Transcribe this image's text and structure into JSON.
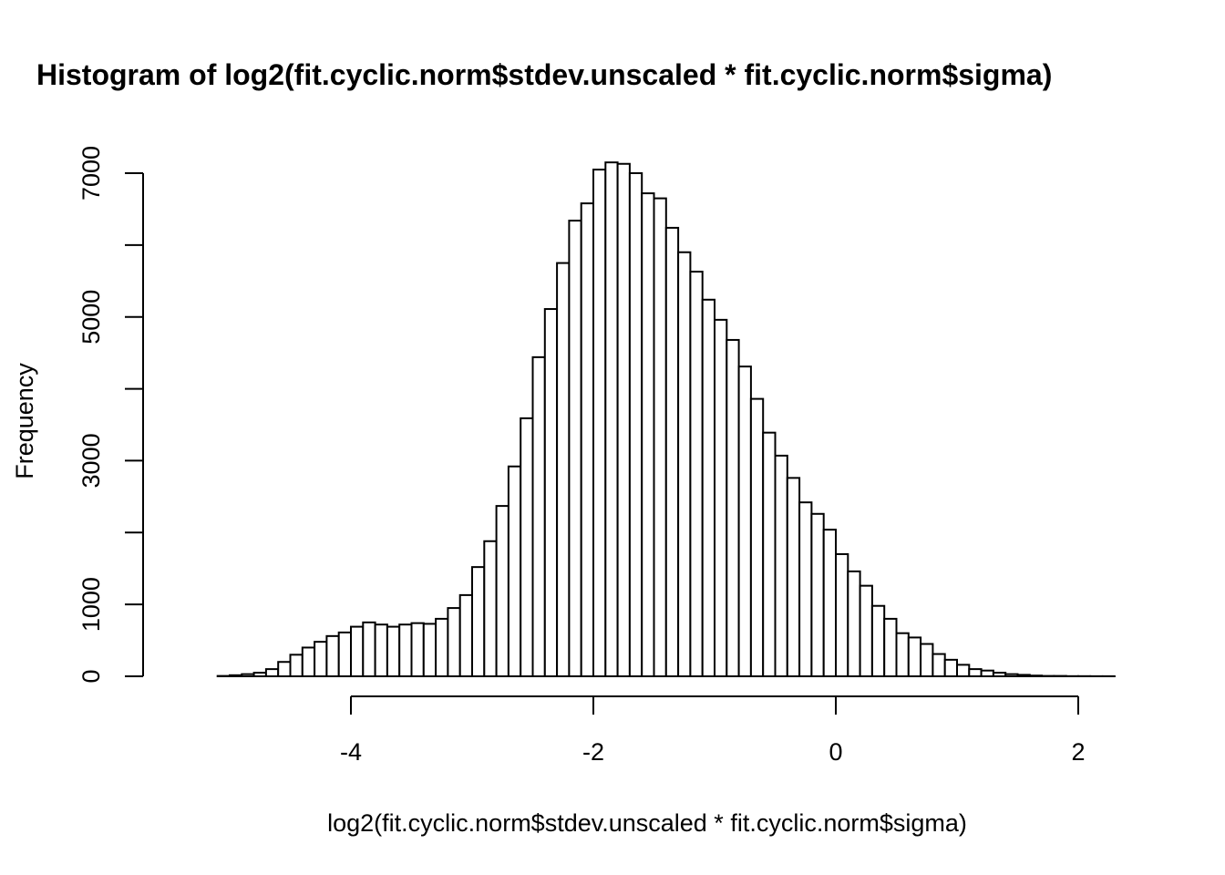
{
  "chart_data": {
    "type": "bar",
    "title": "Histogram of log2(fit.cyclic.norm$stdev.unscaled * fit.cyclic.norm$sigma)",
    "xlabel": "log2(fit.cyclic.norm$stdev.unscaled * fit.cyclic.norm$sigma)",
    "ylabel": "Frequency",
    "bin_width": 0.1,
    "bin_start": -5.3,
    "counts": [
      0,
      0,
      5,
      15,
      30,
      50,
      100,
      200,
      300,
      400,
      480,
      560,
      610,
      690,
      750,
      720,
      690,
      720,
      740,
      730,
      800,
      950,
      1130,
      1520,
      1880,
      2370,
      2920,
      3590,
      4440,
      5110,
      5750,
      6340,
      6580,
      7050,
      7150,
      7130,
      7000,
      6720,
      6650,
      6240,
      5900,
      5630,
      5240,
      4960,
      4680,
      4310,
      3860,
      3390,
      3070,
      2760,
      2420,
      2260,
      2040,
      1700,
      1460,
      1260,
      980,
      800,
      600,
      540,
      450,
      310,
      230,
      160,
      100,
      80,
      50,
      30,
      20,
      10,
      5,
      5,
      2,
      2,
      1,
      1,
      0
    ],
    "xlim": [
      -5.3,
      2.3
    ],
    "ylim": [
      0,
      7500
    ],
    "x_ticks": [
      -4,
      -2,
      0,
      2
    ],
    "x_tick_labels": [
      "-4",
      "-2",
      "0",
      "2"
    ],
    "y_ticks": [
      0,
      1000,
      2000,
      3000,
      4000,
      5000,
      6000,
      7000
    ],
    "y_tick_labels": [
      "0",
      "1000",
      "",
      "3000",
      "",
      "5000",
      "",
      "7000"
    ],
    "grid": false,
    "legend": "none",
    "colors": {
      "bar_fill": "#ffffff",
      "bar_stroke": "#000000",
      "axis": "#000000",
      "text": "#000000"
    }
  }
}
